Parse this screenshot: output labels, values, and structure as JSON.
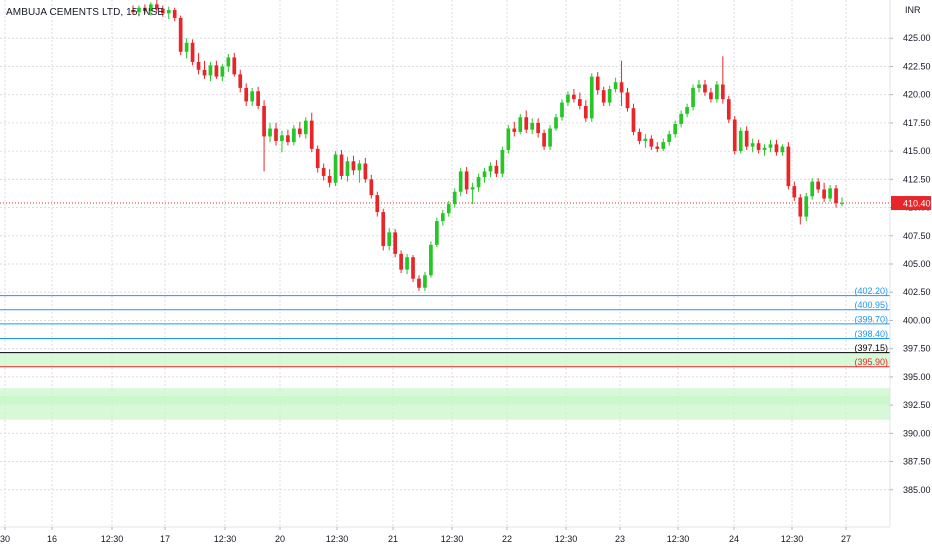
{
  "chart_title": "AMBUJA CEMENTS LTD, 15, NSE",
  "currency_label": "INR",
  "colors": {
    "up": "#26c626",
    "down": "#e8262a",
    "grid": "#d1d4dc",
    "text": "#131722",
    "level": "#2196f3",
    "black_line": "#000000",
    "red_line": "#e8262a",
    "zone": "#c9f7c9",
    "current_price_bg": "#e8262a"
  },
  "chart_data": {
    "type": "candlestick",
    "ylim": [
      382.5,
      427.5
    ],
    "y_ticks": [
      "425.00",
      "422.50",
      "420.00",
      "417.50",
      "415.00",
      "412.50",
      "410.00",
      "407.50",
      "405.00",
      "402.50",
      "400.00",
      "397.50",
      "395.00",
      "392.50",
      "390.00",
      "387.50",
      "385.00"
    ],
    "x_ticks": [
      "30",
      "16",
      "12:30",
      "17",
      "12:30",
      "20",
      "12:30",
      "21",
      "12:30",
      "22",
      "12:30",
      "23",
      "12:30",
      "24",
      "12:30",
      "27"
    ],
    "current_price": "410.40",
    "horizontal_levels": [
      {
        "value": 402.2,
        "label": "(402.20)",
        "kind": "blue"
      },
      {
        "value": 400.95,
        "label": "(400.95)",
        "kind": "blue"
      },
      {
        "value": 399.7,
        "label": "(399.70)",
        "kind": "blue"
      },
      {
        "value": 398.4,
        "label": "(398.40)",
        "kind": "blue"
      },
      {
        "value": 397.15,
        "label": "(397.15)",
        "kind": "black"
      },
      {
        "value": 395.9,
        "label": "(395.90)",
        "kind": "red"
      }
    ],
    "zones": [
      {
        "from": 395.9,
        "to": 397.15
      },
      {
        "from": 391.2,
        "to": 394.0
      }
    ],
    "candles": [
      [
        427.5,
        427.9,
        427.1,
        427.3
      ],
      [
        427.3,
        427.9,
        427.0,
        427.7
      ],
      [
        427.7,
        428.0,
        427.2,
        427.4
      ],
      [
        427.4,
        428.2,
        427.0,
        428.0
      ],
      [
        428.0,
        428.4,
        427.3,
        427.6
      ],
      [
        427.6,
        427.9,
        426.9,
        427.2
      ],
      [
        427.2,
        427.8,
        426.7,
        427.5
      ],
      [
        427.5,
        427.7,
        426.5,
        426.8
      ],
      [
        426.8,
        427.0,
        423.5,
        423.8
      ],
      [
        423.8,
        425.0,
        423.2,
        424.6
      ],
      [
        424.6,
        424.9,
        422.6,
        422.9
      ],
      [
        422.9,
        423.7,
        421.8,
        422.2
      ],
      [
        422.2,
        423.0,
        421.4,
        421.7
      ],
      [
        421.7,
        422.9,
        421.2,
        422.6
      ],
      [
        422.6,
        423.0,
        421.4,
        421.6
      ],
      [
        421.6,
        422.7,
        421.2,
        422.5
      ],
      [
        422.5,
        423.6,
        422.0,
        423.3
      ],
      [
        423.3,
        423.7,
        421.6,
        421.8
      ],
      [
        421.8,
        422.2,
        420.2,
        420.6
      ],
      [
        420.6,
        421.0,
        419.0,
        419.4
      ],
      [
        419.4,
        420.6,
        419.0,
        420.3
      ],
      [
        420.3,
        420.7,
        418.7,
        419.0
      ],
      [
        419.0,
        419.5,
        413.2,
        416.3
      ],
      [
        416.3,
        417.5,
        415.8,
        417.0
      ],
      [
        417.0,
        417.5,
        415.5,
        415.9
      ],
      [
        415.9,
        416.8,
        414.9,
        416.4
      ],
      [
        416.4,
        416.9,
        415.5,
        415.8
      ],
      [
        415.8,
        417.3,
        415.5,
        417.0
      ],
      [
        417.0,
        417.6,
        416.2,
        416.5
      ],
      [
        416.5,
        418.0,
        416.1,
        417.7
      ],
      [
        417.7,
        418.4,
        414.9,
        415.2
      ],
      [
        415.2,
        415.5,
        413.1,
        413.5
      ],
      [
        413.5,
        413.9,
        412.4,
        412.8
      ],
      [
        412.8,
        413.4,
        411.8,
        412.2
      ],
      [
        412.2,
        415.0,
        411.9,
        414.7
      ],
      [
        414.7,
        415.1,
        412.5,
        412.8
      ],
      [
        412.8,
        414.5,
        412.3,
        414.1
      ],
      [
        414.1,
        414.6,
        412.9,
        413.3
      ],
      [
        413.3,
        414.2,
        412.2,
        413.9
      ],
      [
        413.9,
        414.4,
        412.2,
        412.5
      ],
      [
        412.5,
        412.9,
        410.8,
        411.1
      ],
      [
        411.1,
        411.4,
        409.2,
        409.6
      ],
      [
        409.6,
        409.9,
        406.2,
        406.6
      ],
      [
        406.6,
        408.2,
        406.2,
        407.8
      ],
      [
        407.8,
        408.1,
        405.6,
        405.9
      ],
      [
        405.9,
        406.2,
        404.2,
        404.5
      ],
      [
        404.5,
        405.9,
        404.1,
        405.6
      ],
      [
        405.6,
        405.8,
        403.4,
        403.7
      ],
      [
        403.7,
        404.0,
        402.6,
        402.9
      ],
      [
        402.9,
        404.3,
        402.6,
        404.0
      ],
      [
        404.0,
        407.0,
        403.8,
        406.7
      ],
      [
        406.7,
        409.1,
        406.5,
        408.8
      ],
      [
        408.8,
        409.8,
        408.4,
        409.5
      ],
      [
        409.5,
        410.6,
        409.2,
        410.3
      ],
      [
        410.3,
        411.7,
        410.0,
        411.4
      ],
      [
        411.4,
        413.5,
        411.0,
        413.2
      ],
      [
        413.2,
        413.6,
        411.2,
        411.6
      ],
      [
        411.6,
        412.2,
        410.3,
        411.8
      ],
      [
        411.8,
        413.0,
        411.4,
        412.7
      ],
      [
        412.7,
        413.5,
        412.2,
        413.2
      ],
      [
        413.2,
        414.0,
        412.7,
        413.7
      ],
      [
        413.7,
        414.2,
        412.7,
        413.0
      ],
      [
        413.0,
        415.4,
        412.7,
        415.1
      ],
      [
        415.1,
        417.3,
        414.8,
        417.0
      ],
      [
        417.0,
        417.6,
        416.3,
        416.7
      ],
      [
        416.7,
        418.3,
        416.5,
        418.0
      ],
      [
        418.0,
        418.6,
        416.6,
        416.9
      ],
      [
        416.9,
        417.9,
        416.5,
        417.5
      ],
      [
        417.5,
        417.9,
        416.2,
        416.6
      ],
      [
        416.6,
        416.9,
        415.1,
        415.4
      ],
      [
        415.4,
        417.3,
        415.1,
        417.0
      ],
      [
        417.0,
        418.3,
        416.8,
        418.0
      ],
      [
        418.0,
        419.6,
        417.7,
        419.3
      ],
      [
        419.3,
        420.3,
        419.0,
        420.0
      ],
      [
        420.0,
        420.5,
        419.3,
        419.6
      ],
      [
        419.6,
        420.2,
        418.7,
        419.0
      ],
      [
        419.0,
        419.5,
        417.6,
        417.9
      ],
      [
        417.9,
        421.9,
        417.6,
        421.6
      ],
      [
        421.6,
        422.0,
        420.0,
        420.4
      ],
      [
        420.4,
        420.7,
        419.0,
        419.3
      ],
      [
        419.3,
        420.8,
        419.0,
        420.5
      ],
      [
        420.5,
        421.5,
        420.2,
        421.1
      ],
      [
        421.1,
        423.0,
        419.0,
        420.2
      ],
      [
        420.2,
        420.6,
        418.5,
        418.8
      ],
      [
        418.8,
        419.2,
        416.4,
        416.7
      ],
      [
        416.7,
        417.0,
        415.6,
        415.9
      ],
      [
        415.9,
        416.5,
        415.3,
        416.1
      ],
      [
        416.1,
        416.4,
        415.1,
        415.4
      ],
      [
        415.4,
        415.8,
        414.9,
        415.2
      ],
      [
        415.2,
        416.1,
        415.0,
        415.8
      ],
      [
        415.8,
        416.8,
        415.5,
        416.5
      ],
      [
        416.5,
        417.7,
        416.2,
        417.4
      ],
      [
        417.4,
        418.6,
        417.1,
        418.3
      ],
      [
        418.3,
        419.2,
        418.0,
        418.9
      ],
      [
        418.9,
        420.9,
        418.6,
        420.6
      ],
      [
        420.6,
        421.3,
        420.2,
        420.9
      ],
      [
        420.9,
        421.3,
        419.9,
        420.2
      ],
      [
        420.2,
        420.6,
        419.3,
        419.6
      ],
      [
        419.6,
        421.2,
        419.3,
        420.9
      ],
      [
        420.9,
        423.4,
        419.2,
        419.6
      ],
      [
        419.6,
        419.9,
        417.5,
        417.8
      ],
      [
        417.8,
        418.1,
        414.7,
        415.0
      ],
      [
        415.0,
        417.1,
        414.8,
        416.8
      ],
      [
        416.8,
        417.2,
        415.1,
        415.4
      ],
      [
        415.4,
        416.1,
        414.9,
        415.7
      ],
      [
        415.7,
        416.0,
        414.8,
        415.1
      ],
      [
        415.1,
        415.6,
        414.6,
        415.3
      ],
      [
        415.3,
        416.0,
        414.9,
        415.6
      ],
      [
        415.6,
        416.0,
        414.6,
        414.9
      ],
      [
        414.9,
        415.6,
        414.6,
        415.4
      ],
      [
        415.4,
        415.8,
        411.6,
        411.9
      ],
      [
        411.9,
        412.3,
        410.6,
        410.9
      ],
      [
        410.9,
        411.2,
        408.5,
        409.2
      ],
      [
        409.2,
        411.3,
        408.8,
        411.0
      ],
      [
        411.0,
        412.6,
        410.7,
        412.3
      ],
      [
        412.3,
        412.6,
        411.3,
        411.6
      ],
      [
        411.6,
        412.2,
        410.5,
        410.8
      ],
      [
        410.8,
        412.0,
        410.5,
        411.7
      ],
      [
        411.7,
        412.0,
        410.0,
        410.4
      ],
      [
        410.4,
        410.9,
        410.1,
        410.4
      ]
    ]
  }
}
